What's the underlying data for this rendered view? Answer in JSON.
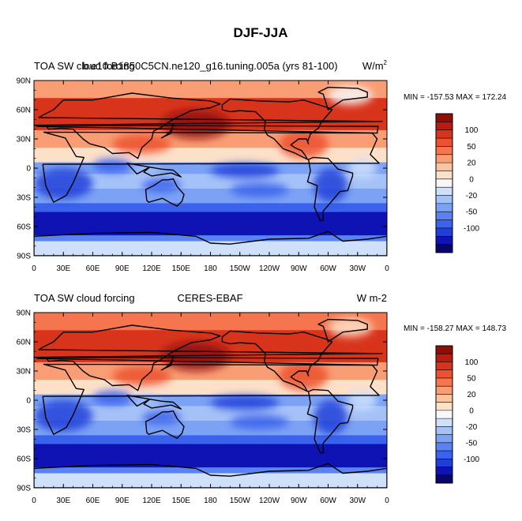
{
  "figure_title": "DJF-JJA",
  "colorbar_levels": [
    "100",
    "50",
    "20",
    "0",
    "-20",
    "-50",
    "-100"
  ],
  "colors": {
    "scale": [
      "#08066a",
      "#0f13b4",
      "#1f3fd9",
      "#3a62ec",
      "#5a82f2",
      "#7ca2f5",
      "#a5c2f8",
      "#cfe0fb",
      "#f7f7f7",
      "#fde0c8",
      "#fcc3a0",
      "#f99d74",
      "#f5764e",
      "#ec5130",
      "#d8341c",
      "#b81c10",
      "#8f0e08"
    ],
    "land_outline": "#000000"
  },
  "chart_data": [
    {
      "type": "heatmap",
      "title_left": "TOA SW cloud forcing",
      "title_center": "b.e10.B1850C5CN.ne120_g16.tuning.005a (yrs 81-100)",
      "units_base": "W/m",
      "units_exp": "2",
      "stats": "MIN = -157.53 MAX = 172.24",
      "min": -157.53,
      "max": 172.24,
      "xticks": [
        "0",
        "30E",
        "60E",
        "90E",
        "120E",
        "150E",
        "180",
        "150W",
        "120W",
        "90W",
        "60W",
        "30W",
        "0"
      ],
      "yticks": [
        "90N",
        "60N",
        "30N",
        "0",
        "30S",
        "60S",
        "90S"
      ],
      "xlim": [
        0,
        360
      ],
      "ylim": [
        -90,
        90
      ]
    },
    {
      "type": "heatmap",
      "title_left": "TOA SW cloud forcing",
      "title_center": "CERES-EBAF",
      "units": "W m-2",
      "stats": "MIN = -158.27 MAX = 148.73",
      "min": -158.27,
      "max": 148.73,
      "xticks": [
        "0",
        "30E",
        "60E",
        "90E",
        "120E",
        "150E",
        "180",
        "150W",
        "120W",
        "90W",
        "60W",
        "30W",
        "0"
      ],
      "yticks": [
        "90N",
        "60N",
        "30N",
        "0",
        "30S",
        "60S",
        "90S"
      ],
      "xlim": [
        0,
        360
      ],
      "ylim": [
        -90,
        90
      ]
    }
  ]
}
